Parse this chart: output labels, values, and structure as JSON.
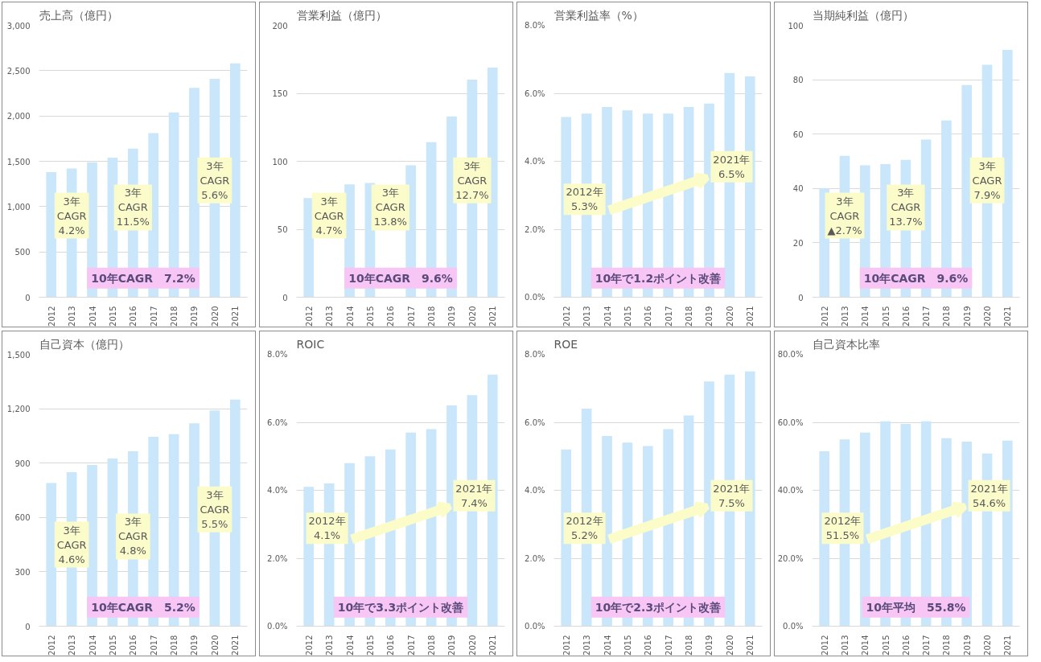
{
  "chart_data": [
    {
      "type": "bar",
      "title": "売上高（億円）",
      "categories": [
        "2012",
        "2013",
        "2014",
        "2015",
        "2016",
        "2017",
        "2018",
        "2019",
        "2020",
        "2021"
      ],
      "values": [
        1380,
        1420,
        1490,
        1540,
        1640,
        1810,
        2040,
        2310,
        2410,
        2580
      ],
      "color": "#c9e6fa",
      "ylim": [
        0,
        3000
      ],
      "yticks": [
        {
          "value": 0,
          "label": "0"
        },
        {
          "value": 500,
          "label": "500"
        },
        {
          "value": 1000,
          "label": "1,000"
        },
        {
          "value": 1500,
          "label": "1,500"
        },
        {
          "value": 2000,
          "label": "2,000"
        },
        {
          "value": 2500,
          "label": "2,500"
        },
        {
          "value": 3000,
          "label": "3,000"
        }
      ],
      "grid": "y",
      "annotations": [
        "3年\nCAGR\n4.2%",
        "3年\nCAGR\n11.5%",
        "3年\nCAGR\n5.6%",
        "10年CAGR　7.2%"
      ]
    },
    {
      "type": "bar",
      "title": "営業利益（億円）",
      "categories": [
        "2012",
        "2013",
        "2014",
        "2015",
        "2016",
        "2017",
        "2018",
        "2019",
        "2020",
        "2021"
      ],
      "values": [
        73,
        null,
        83,
        84,
        null,
        97,
        114,
        133,
        160,
        169
      ],
      "color": "#c9e6fa",
      "ylim": [
        0,
        200
      ],
      "yticks": [
        0,
        50,
        100,
        150,
        200
      ],
      "grid": "y",
      "annotations": [
        "3年\nCAGR\n4.7%",
        "3年\nCAGR\n13.8%",
        "3年\nCAGR\n12.7%",
        "10年CAGR　9.6%"
      ]
    },
    {
      "type": "bar",
      "title": "営業利益率（%）",
      "categories": [
        "2012",
        "2013",
        "2014",
        "2015",
        "2016",
        "2017",
        "2018",
        "2019",
        "2020",
        "2021"
      ],
      "values": [
        5.3,
        5.4,
        5.6,
        5.5,
        5.4,
        5.4,
        5.6,
        5.7,
        6.6,
        6.5
      ],
      "color": "#c9e6fa",
      "ylim": [
        0,
        8
      ],
      "yticks": [
        {
          "value": 0,
          "label": "0.0%"
        },
        {
          "value": 2,
          "label": "2.0%"
        },
        {
          "value": 4,
          "label": "4.0%"
        },
        {
          "value": 6,
          "label": "6.0%"
        },
        {
          "value": 8,
          "label": "8.0%"
        }
      ],
      "grid": "y",
      "annotations": [
        "2012年\n5.3%",
        "2021年\n6.5%",
        "10年で1.2ポイント改善"
      ]
    },
    {
      "type": "bar",
      "title": "当期純利益（億円）",
      "categories": [
        "2012",
        "2013",
        "2014",
        "2015",
        "2016",
        "2017",
        "2018",
        "2019",
        "2020",
        "2021"
      ],
      "values": [
        40,
        52,
        48.5,
        49,
        50.5,
        58,
        65,
        78,
        85.5,
        91
      ],
      "color": "#c9e6fa",
      "ylim": [
        0,
        100
      ],
      "yticks": [
        0,
        20,
        40,
        60,
        80,
        100
      ],
      "grid": "y",
      "annotations": [
        "3年\nCAGR\n▲2.7%",
        "3年\nCAGR\n13.7%",
        "3年\nCAGR\n7.9%",
        "10年CAGR　9.6%"
      ]
    },
    {
      "type": "bar",
      "title": "自己資本（億円）",
      "categories": [
        "2012",
        "2013",
        "2014",
        "2015",
        "2016",
        "2017",
        "2018",
        "2019",
        "2020",
        "2021"
      ],
      "values": [
        790,
        850,
        890,
        925,
        965,
        1045,
        1060,
        1120,
        1190,
        1250
      ],
      "color": "#c9e6fa",
      "ylim": [
        0,
        1500
      ],
      "yticks": [
        {
          "value": 0,
          "label": "0"
        },
        {
          "value": 300,
          "label": "300"
        },
        {
          "value": 600,
          "label": "600"
        },
        {
          "value": 900,
          "label": "900"
        },
        {
          "value": 1200,
          "label": "1,200"
        },
        {
          "value": 1500,
          "label": "1,500"
        }
      ],
      "grid": "y",
      "annotations": [
        "3年\nCAGR\n4.6%",
        "3年\nCAGR\n4.8%",
        "3年\nCAGR\n5.5%",
        "10年CAGR　5.2%"
      ]
    },
    {
      "type": "bar",
      "title": "ROIC",
      "categories": [
        "2012",
        "2013",
        "2014",
        "2015",
        "2016",
        "2017",
        "2018",
        "2019",
        "2020",
        "2021"
      ],
      "values": [
        4.1,
        4.2,
        4.8,
        5.0,
        5.2,
        5.7,
        5.8,
        6.5,
        6.8,
        7.4
      ],
      "color": "#c9e6fa",
      "ylim": [
        0,
        8
      ],
      "yticks": [
        {
          "value": 0,
          "label": "0.0%"
        },
        {
          "value": 2,
          "label": "2.0%"
        },
        {
          "value": 4,
          "label": "4.0%"
        },
        {
          "value": 6,
          "label": "6.0%"
        },
        {
          "value": 8,
          "label": "8.0%"
        }
      ],
      "grid": "y",
      "annotations": [
        "2012年\n4.1%",
        "2021年\n7.4%",
        "10年で3.3ポイント改善"
      ]
    },
    {
      "type": "bar",
      "title": "ROE",
      "categories": [
        "2012",
        "2013",
        "2014",
        "2015",
        "2016",
        "2017",
        "2018",
        "2019",
        "2020",
        "2021"
      ],
      "values": [
        5.2,
        6.4,
        5.6,
        5.4,
        5.3,
        5.8,
        6.2,
        7.2,
        7.4,
        7.5
      ],
      "color": "#c9e6fa",
      "ylim": [
        0,
        8
      ],
      "yticks": [
        {
          "value": 0,
          "label": "0.0%"
        },
        {
          "value": 2,
          "label": "2.0%"
        },
        {
          "value": 4,
          "label": "4.0%"
        },
        {
          "value": 6,
          "label": "6.0%"
        },
        {
          "value": 8,
          "label": "8.0%"
        }
      ],
      "grid": "y",
      "annotations": [
        "2012年\n5.2%",
        "2021年\n7.5%",
        "10年で2.3ポイント改善"
      ]
    },
    {
      "type": "bar",
      "title": "自己資本比率",
      "categories": [
        "2012",
        "2013",
        "2014",
        "2015",
        "2016",
        "2017",
        "2018",
        "2019",
        "2020",
        "2021"
      ],
      "values": [
        51.5,
        55,
        57,
        60.3,
        59.5,
        60.3,
        55.3,
        54.3,
        50.8,
        54.6
      ],
      "color": "#c9e6fa",
      "ylim": [
        0,
        80
      ],
      "yticks": [
        {
          "value": 0,
          "label": "0.0%"
        },
        {
          "value": 20,
          "label": "20.0%"
        },
        {
          "value": 40,
          "label": "40.0%"
        },
        {
          "value": 60,
          "label": "60.0%"
        },
        {
          "value": 80,
          "label": "80.0%"
        }
      ],
      "grid": "y",
      "annotations": [
        "2012年\n51.5%",
        "2021年\n54.6%",
        "10年平均　55.8%"
      ]
    }
  ]
}
